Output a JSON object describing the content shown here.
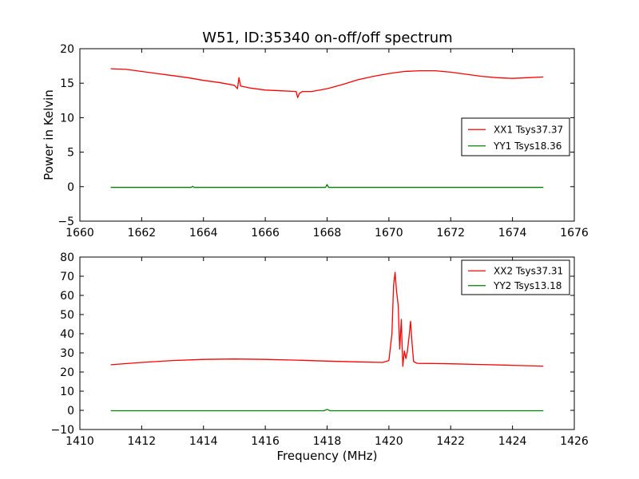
{
  "title": "W51, ID:35340 on-off/off spectrum",
  "chart_data": [
    {
      "type": "line",
      "title": "W51, ID:35340 on-off/off spectrum",
      "xlabel": "",
      "ylabel": "Power in Kelvin",
      "xlim": [
        1660,
        1676
      ],
      "ylim": [
        -5,
        20
      ],
      "xticks": [
        "1660",
        "1662",
        "1664",
        "1666",
        "1668",
        "1670",
        "1672",
        "1674",
        "1676"
      ],
      "yticks": [
        "−5",
        "0",
        "5",
        "10",
        "15",
        "20"
      ],
      "legend_position": "center-right",
      "grid": false,
      "series": [
        {
          "name": "XX1 Tsys37.37",
          "color": "#ff0000",
          "x": [
            1661.0,
            1661.5,
            1662.0,
            1662.5,
            1663.0,
            1663.5,
            1664.0,
            1664.5,
            1665.0,
            1665.1,
            1665.15,
            1665.2,
            1665.3,
            1665.5,
            1666.0,
            1666.5,
            1667.0,
            1667.05,
            1667.1,
            1667.2,
            1667.5,
            1668.0,
            1668.5,
            1669.0,
            1669.5,
            1670.0,
            1670.5,
            1671.0,
            1671.5,
            1672.0,
            1672.5,
            1673.0,
            1673.5,
            1674.0,
            1674.5,
            1675.0
          ],
          "y": [
            17.1,
            17.0,
            16.7,
            16.4,
            16.1,
            15.8,
            15.4,
            15.1,
            14.7,
            14.2,
            15.8,
            14.6,
            14.5,
            14.3,
            14.0,
            13.9,
            13.8,
            12.9,
            13.5,
            13.8,
            13.8,
            14.2,
            14.8,
            15.5,
            16.0,
            16.4,
            16.7,
            16.8,
            16.8,
            16.6,
            16.3,
            16.0,
            15.8,
            15.7,
            15.8,
            15.9
          ]
        },
        {
          "name": "YY1 Tsys18.36",
          "color": "#008000",
          "x": [
            1661.0,
            1663.6,
            1663.65,
            1663.7,
            1666.0,
            1667.95,
            1668.0,
            1668.05,
            1670.0,
            1672.0,
            1675.0
          ],
          "y": [
            -0.1,
            -0.1,
            0.05,
            -0.1,
            -0.1,
            -0.1,
            0.3,
            -0.1,
            -0.1,
            -0.1,
            -0.1
          ]
        }
      ]
    },
    {
      "type": "line",
      "title": "",
      "xlabel": "Frequency (MHz)",
      "ylabel": "",
      "xlim": [
        1410,
        1426
      ],
      "ylim": [
        -10,
        80
      ],
      "xticks": [
        "1410",
        "1412",
        "1414",
        "1416",
        "1418",
        "1420",
        "1422",
        "1424",
        "1426"
      ],
      "yticks": [
        "−10",
        "0",
        "10",
        "20",
        "30",
        "40",
        "50",
        "60",
        "70",
        "80"
      ],
      "legend_position": "upper-right",
      "grid": false,
      "series": [
        {
          "name": "XX2 Tsys37.31",
          "color": "#ff0000",
          "x": [
            1411.0,
            1412.0,
            1413.0,
            1414.0,
            1415.0,
            1416.0,
            1417.0,
            1418.0,
            1419.0,
            1419.8,
            1420.0,
            1420.1,
            1420.15,
            1420.2,
            1420.25,
            1420.3,
            1420.35,
            1420.4,
            1420.45,
            1420.5,
            1420.55,
            1420.6,
            1420.65,
            1420.7,
            1420.75,
            1420.8,
            1420.9,
            1421.0,
            1421.5,
            1422.0,
            1423.0,
            1424.0,
            1425.0
          ],
          "y": [
            23.8,
            25.0,
            26.0,
            26.6,
            26.8,
            26.6,
            26.2,
            25.7,
            25.3,
            25.0,
            26.0,
            40.0,
            65.0,
            72.0,
            62.0,
            55.0,
            32.0,
            47.5,
            23.0,
            31.0,
            27.0,
            31.0,
            38.0,
            46.5,
            35.0,
            25.5,
            24.6,
            24.5,
            24.4,
            24.3,
            23.9,
            23.5,
            23.1
          ]
        },
        {
          "name": "YY2 Tsys13.18",
          "color": "#008000",
          "x": [
            1411.0,
            1414.0,
            1417.9,
            1418.0,
            1418.1,
            1421.0,
            1425.0
          ],
          "y": [
            -0.2,
            -0.2,
            -0.2,
            0.5,
            -0.2,
            -0.2,
            -0.2
          ]
        }
      ]
    }
  ]
}
